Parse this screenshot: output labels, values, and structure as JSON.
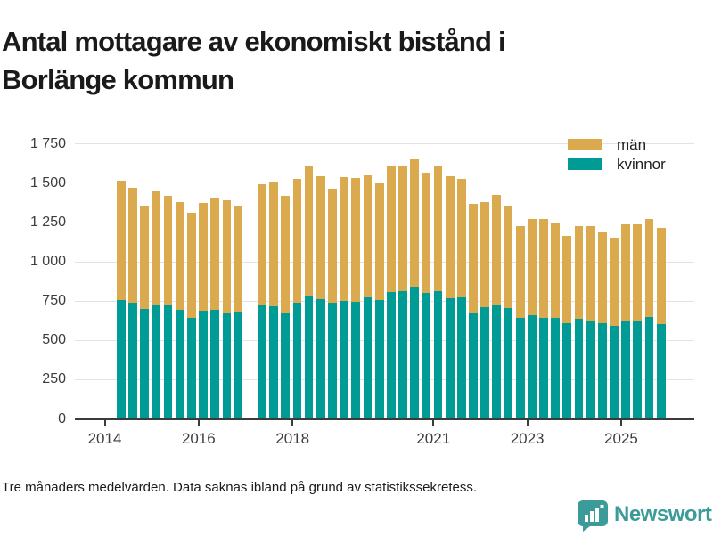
{
  "header": {
    "title": "Antal mottagare av ekonomiskt bistånd i Borlänge kommun"
  },
  "footer": {
    "note": "Tre månaders medelvärden. Data saknas ibland på grund av statistikssekretess.",
    "brand": "Newsworthy"
  },
  "colors": {
    "men": "#DBA94E",
    "women": "#009B95",
    "brand_teal": "#3B9B98",
    "grid": "#E2E2E2",
    "axis": "#3B3B3B",
    "tick_label": "#3D3D3D",
    "title_text": "#1A1A1A"
  },
  "chart_data": {
    "type": "bar",
    "stacked": true,
    "title": "Antal mottagare av ekonomiskt bistånd i Borlänge kommun",
    "note": "Tre månaders medelvärden. Data saknas ibland på grund av statistikssekretess.",
    "legend": [
      {
        "label": "män",
        "color": "#DBA94E"
      },
      {
        "label": "kvinnor",
        "color": "#009B95"
      }
    ],
    "legend_position": "top-right",
    "grid": true,
    "x_tick_labels": [
      "2014",
      "2016",
      "2018",
      "2021",
      "2023",
      "2025"
    ],
    "y_tick_labels": [
      "0",
      "250",
      "500",
      "750",
      "1 000",
      "1 250",
      "1 500",
      "1 750"
    ],
    "y_tick_step": 250,
    "ylim": [
      0,
      1850
    ],
    "x_time_range": [
      "2014-Q2",
      "2025-Q4"
    ],
    "missing_periods": [
      "2017-Q1"
    ],
    "bars": [
      {
        "period": "2014-Q2",
        "kvinnor": 755,
        "man": 760
      },
      {
        "period": "2014-Q3",
        "kvinnor": 740,
        "man": 730
      },
      {
        "period": "2014-Q4",
        "kvinnor": 700,
        "man": 660
      },
      {
        "period": "2015-Q1",
        "kvinnor": 725,
        "man": 725
      },
      {
        "period": "2015-Q2",
        "kvinnor": 720,
        "man": 700
      },
      {
        "period": "2015-Q3",
        "kvinnor": 695,
        "man": 685
      },
      {
        "period": "2015-Q4",
        "kvinnor": 645,
        "man": 665
      },
      {
        "period": "2016-Q1",
        "kvinnor": 690,
        "man": 685
      },
      {
        "period": "2016-Q2",
        "kvinnor": 695,
        "man": 715
      },
      {
        "period": "2016-Q3",
        "kvinnor": 680,
        "man": 710
      },
      {
        "period": "2016-Q4",
        "kvinnor": 685,
        "man": 675
      },
      {
        "period": "2017-Q2",
        "kvinnor": 730,
        "man": 765
      },
      {
        "period": "2017-Q3",
        "kvinnor": 715,
        "man": 795
      },
      {
        "period": "2017-Q4",
        "kvinnor": 670,
        "man": 750
      },
      {
        "period": "2018-Q1",
        "kvinnor": 740,
        "man": 790
      },
      {
        "period": "2018-Q2",
        "kvinnor": 785,
        "man": 825
      },
      {
        "period": "2018-Q3",
        "kvinnor": 765,
        "man": 780
      },
      {
        "period": "2018-Q4",
        "kvinnor": 740,
        "man": 725
      },
      {
        "period": "2019-Q1",
        "kvinnor": 750,
        "man": 790
      },
      {
        "period": "2019-Q2",
        "kvinnor": 745,
        "man": 790
      },
      {
        "period": "2019-Q3",
        "kvinnor": 775,
        "man": 775
      },
      {
        "period": "2019-Q4",
        "kvinnor": 755,
        "man": 750
      },
      {
        "period": "2020-Q1",
        "kvinnor": 810,
        "man": 795
      },
      {
        "period": "2020-Q2",
        "kvinnor": 815,
        "man": 795
      },
      {
        "period": "2020-Q3",
        "kvinnor": 840,
        "man": 815
      },
      {
        "period": "2020-Q4",
        "kvinnor": 800,
        "man": 770
      },
      {
        "period": "2021-Q1",
        "kvinnor": 815,
        "man": 790
      },
      {
        "period": "2021-Q2",
        "kvinnor": 770,
        "man": 775
      },
      {
        "period": "2021-Q3",
        "kvinnor": 775,
        "man": 755
      },
      {
        "period": "2021-Q4",
        "kvinnor": 680,
        "man": 690
      },
      {
        "period": "2022-Q1",
        "kvinnor": 710,
        "man": 670
      },
      {
        "period": "2022-Q2",
        "kvinnor": 725,
        "man": 700
      },
      {
        "period": "2022-Q3",
        "kvinnor": 705,
        "man": 655
      },
      {
        "period": "2022-Q4",
        "kvinnor": 645,
        "man": 580
      },
      {
        "period": "2023-Q1",
        "kvinnor": 660,
        "man": 615
      },
      {
        "period": "2023-Q2",
        "kvinnor": 645,
        "man": 625
      },
      {
        "period": "2023-Q3",
        "kvinnor": 645,
        "man": 605
      },
      {
        "period": "2023-Q4",
        "kvinnor": 610,
        "man": 555
      },
      {
        "period": "2024-Q1",
        "kvinnor": 640,
        "man": 585
      },
      {
        "period": "2024-Q2",
        "kvinnor": 620,
        "man": 605
      },
      {
        "period": "2024-Q3",
        "kvinnor": 610,
        "man": 575
      },
      {
        "period": "2024-Q4",
        "kvinnor": 590,
        "man": 565
      },
      {
        "period": "2025-Q1",
        "kvinnor": 625,
        "man": 615
      },
      {
        "period": "2025-Q2",
        "kvinnor": 625,
        "man": 615
      },
      {
        "period": "2025-Q3",
        "kvinnor": 650,
        "man": 625
      },
      {
        "period": "2025-Q4",
        "kvinnor": 605,
        "man": 610
      }
    ]
  }
}
